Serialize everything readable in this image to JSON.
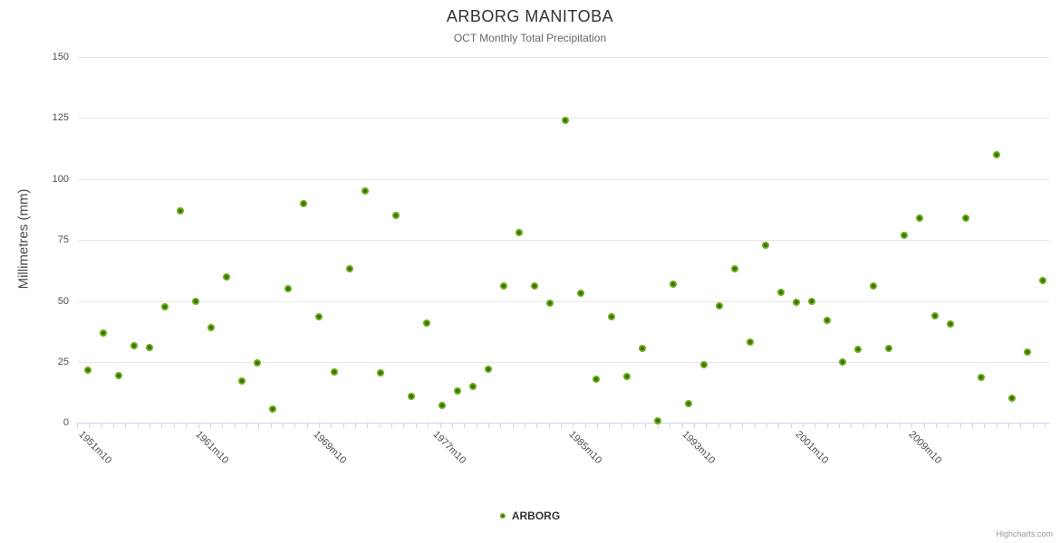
{
  "header": {
    "title": "ARBORG MANITOBA",
    "subtitle": "OCT Monthly Total Precipitation"
  },
  "legend": {
    "series_label": "ARBORG"
  },
  "credits": {
    "label": "Highcharts.com"
  },
  "colors": {
    "marker_outer": "#6fae1c",
    "marker_inner": "#3a6d07",
    "grid": "#e6e6e6",
    "axis_line": "#ccd6eb",
    "tick_mark": "#ccd6eb",
    "title_text": "#333333",
    "subtitle_text": "#666666",
    "axis_label_text": "#4d4d4d",
    "credits_text": "#999999"
  },
  "chart_data": {
    "type": "scatter",
    "title": "ARBORG MANITOBA",
    "subtitle": "OCT Monthly Total Precipitation",
    "ylabel": "Millimetres (mm)",
    "xlabel": "",
    "ylim": [
      0,
      150
    ],
    "y_ticks": [
      0,
      25,
      50,
      75,
      100,
      125,
      150
    ],
    "grid": "horizontal-only",
    "legend_position": "bottom-center",
    "x_visible_labels": [
      "1951m10",
      "1961m10",
      "1969m10",
      "1977m10",
      "1985m10",
      "1993m10",
      "2001m10",
      "2009m10"
    ],
    "categories": [
      "1950m10",
      "1951m10",
      "1952m10",
      "1953m10",
      "1954m10",
      "1955m10",
      "1956m10",
      "1957m10",
      "1958m10",
      "1959m10",
      "1960m10",
      "1961m10",
      "1962m10",
      "1963m10",
      "1964m10",
      "1965m10",
      "1966m10",
      "1967m10",
      "1968m10",
      "1969m10",
      "1970m10",
      "1971m10",
      "1972m10",
      "1973m10",
      "1974m10",
      "1975m10",
      "1976m10",
      "1977m10",
      "1978m10",
      "1979m10",
      "1980m10",
      "1981m10",
      "1982m10",
      "1983m10",
      "1984m10",
      "1985m10",
      "1986m10",
      "1987m10",
      "1988m10",
      "1989m10",
      "1990m10",
      "1991m10",
      "1992m10",
      "1993m10",
      "1994m10",
      "1995m10",
      "1996m10",
      "1997m10",
      "1998m10",
      "1999m10",
      "2000m10",
      "2001m10",
      "2002m10",
      "2003m10",
      "2004m10",
      "2005m10",
      "2006m10",
      "2007m10",
      "2008m10",
      "2009m10",
      "2010m10",
      "2011m10",
      "2012m10"
    ],
    "series": [
      {
        "name": "ARBORG",
        "values": [
          21.5,
          37,
          19.5,
          31.5,
          31,
          47.5,
          87,
          50,
          39,
          60,
          17,
          24.5,
          5.5,
          55,
          90,
          43.5,
          21,
          63,
          95,
          20.5,
          85,
          11,
          41,
          7,
          13,
          15,
          22,
          56,
          78,
          56,
          49,
          124,
          53,
          18,
          43.5,
          19,
          30.5,
          1,
          57,
          8,
          24,
          48,
          63,
          33,
          73,
          53.5,
          49.5,
          50,
          42,
          25,
          30,
          56,
          30.5,
          77,
          84,
          44,
          40.5,
          84,
          18.5,
          110,
          10,
          29,
          58.5
        ]
      }
    ]
  }
}
